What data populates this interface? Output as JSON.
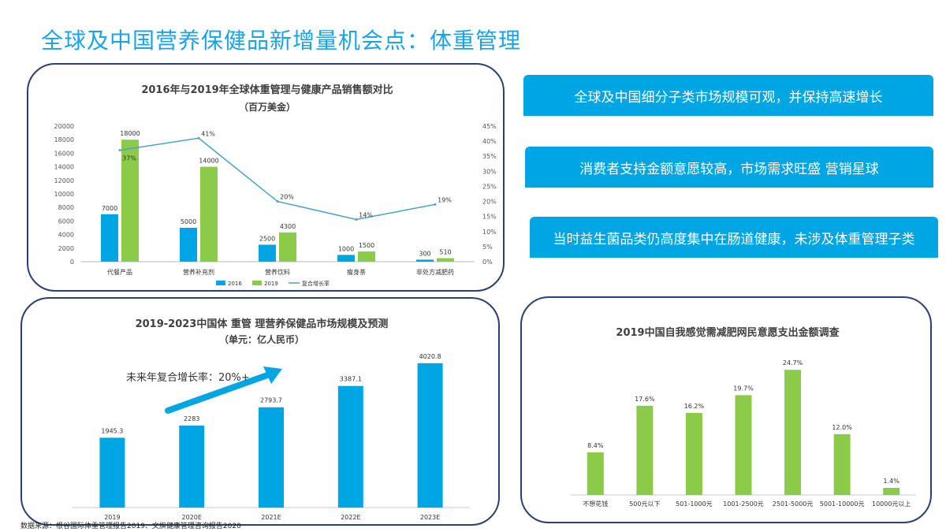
{
  "title": "全球及中国营养保健品新增量机会点：体重管理",
  "banners": [
    "全球及中国细分子类市场规模可观，并保持高速增长",
    "消费者支持金额意愿较高，市场需求旺盛 营销星球",
    "当时益生菌品类仍高度集中在肠道健康，未涉及体重管理子类"
  ],
  "source": "数据来源：根谷国际体重管理报告2019、文旗健康管理咨询报告2020",
  "colors": {
    "blue": "#00a6e4",
    "green": "#8ccb4a",
    "line": "#4aa3c8",
    "title": "#1aa3e8",
    "border": "#2b3f73"
  },
  "chart_data": [
    {
      "type": "bar",
      "title": "2016年与2019年全球体重管理与健康产品销售额对比",
      "subtitle": "（百万美金）",
      "categories": [
        "代餐产品",
        "营养补充剂",
        "营养饮料",
        "瘦身茶",
        "非处方减肥药"
      ],
      "series": [
        {
          "name": "2016",
          "values": [
            7000,
            5000,
            2500,
            1000,
            300
          ],
          "labels": [
            "7000",
            "5000",
            "2500",
            "1000",
            "300"
          ]
        },
        {
          "name": "2019",
          "values": [
            18000,
            14000,
            4300,
            1500,
            510
          ],
          "labels": [
            "18000",
            "14000",
            "4300",
            "1500",
            "510"
          ]
        }
      ],
      "line_series": {
        "name": "复合增长率",
        "values": [
          37,
          41,
          20,
          14,
          19
        ],
        "labels": [
          "37%",
          "41%",
          "20%",
          "14%",
          "19%"
        ]
      },
      "ylim": [
        0,
        20000
      ],
      "yticks": [
        "0",
        "2000",
        "4000",
        "6000",
        "8000",
        "10000",
        "12000",
        "14000",
        "16000",
        "18000",
        "20000"
      ],
      "y2lim": [
        0,
        45
      ],
      "y2ticks": [
        "0%",
        "5%",
        "10%",
        "15%",
        "20%",
        "25%",
        "30%",
        "35%",
        "40%",
        "45%"
      ],
      "legend": "bottom"
    },
    {
      "type": "bar",
      "title": "2019-2023中国体 重管 理营养保健品市场规模及预测",
      "subtitle": "（单元：亿人民币）",
      "categories": [
        "2019",
        "2020E",
        "2021E",
        "2022E",
        "2023E"
      ],
      "values": [
        1945.3,
        2283,
        2793.7,
        3387.1,
        4020.8
      ],
      "labels": [
        "1945.3",
        "2283",
        "2793.7",
        "3387.1",
        "4020.8"
      ],
      "annotation": "未来年复合增长率：20%+",
      "ylim": [
        0,
        4500
      ]
    },
    {
      "type": "bar",
      "title": "2019中国自我感觉需减肥网民意愿支出金额调查",
      "categories": [
        "不想花钱",
        "500元以下",
        "501-1000元",
        "1001-2500元",
        "2501-5000元",
        "5001-10000元",
        "10000元以上"
      ],
      "values": [
        8.4,
        17.6,
        16.2,
        19.7,
        24.7,
        12.0,
        1.4
      ],
      "labels": [
        "8.4%",
        "17.6%",
        "16.2%",
        "19.7%",
        "24.7%",
        "12.0%",
        "1.4%"
      ],
      "ylim": [
        0,
        28
      ]
    }
  ]
}
